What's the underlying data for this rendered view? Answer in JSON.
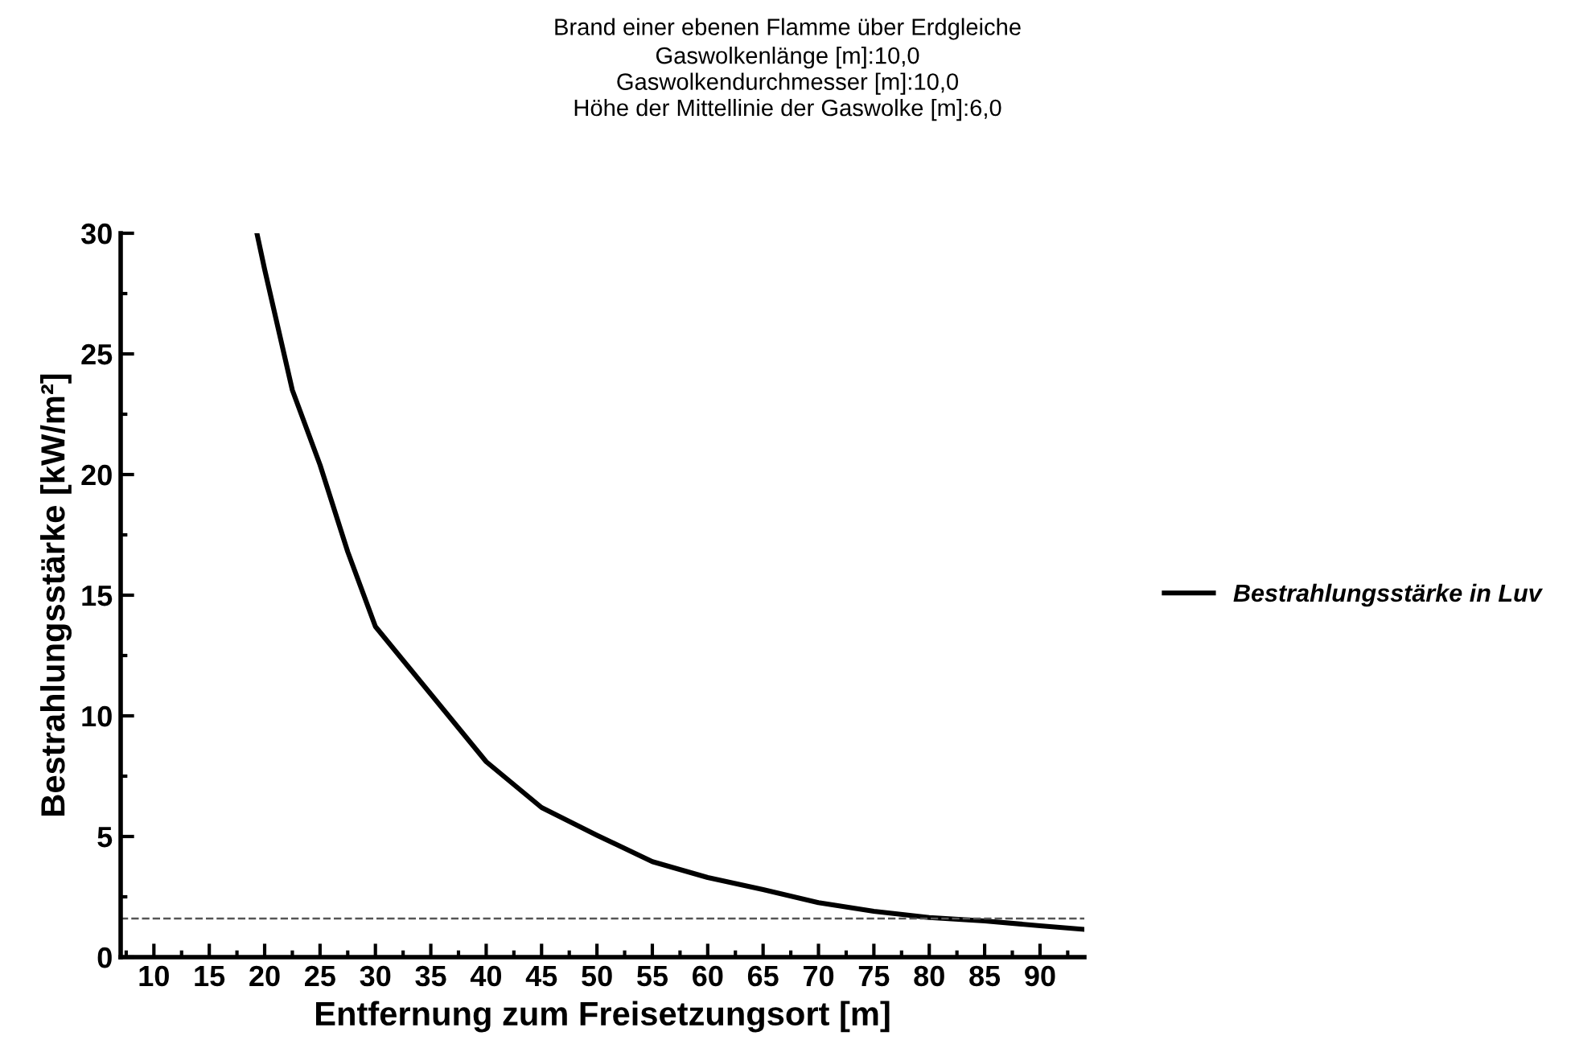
{
  "chart_data": {
    "type": "line",
    "title": "Brand einer ebenen Flamme über Erdgleiche",
    "subtitle": "Gaswolkenlänge [m]:10,0\nGaswolkendurchmesser [m]:10,0\nHöhe der Mittellinie der Gaswolke [m]:6,0",
    "xlabel": "Entfernung zum Freisetzungsort [m]",
    "ylabel": "Bestrahlungsstärke [kW/m²]",
    "xlim": [
      7,
      94
    ],
    "xticks": [
      10,
      15,
      20,
      25,
      30,
      35,
      40,
      45,
      50,
      55,
      60,
      65,
      70,
      75,
      80,
      85,
      90
    ],
    "ylim": [
      0,
      30
    ],
    "yticks": [
      0,
      5,
      10,
      15,
      20,
      25,
      30
    ],
    "series": [
      {
        "name": "Bestrahlungsstärke in Luv",
        "color": "#000000",
        "x": [
          19.3,
          20,
          22.5,
          25,
          27.5,
          30,
          35,
          40,
          45,
          50,
          55,
          60,
          65,
          70,
          75,
          80,
          85,
          90,
          94
        ],
        "values": [
          30,
          28.5,
          23.5,
          20.4,
          16.8,
          13.7,
          10.9,
          8.1,
          6.2,
          5.05,
          3.96,
          3.3,
          2.8,
          2.26,
          1.9,
          1.64,
          1.5,
          1.3,
          1.15
        ]
      }
    ],
    "ref_lines": [
      {
        "axis": "y",
        "value": 1.6,
        "color": "#555555",
        "line_style": "dashed"
      }
    ],
    "legend": "right",
    "grid": false,
    "marker": "none",
    "line_style": "solid"
  }
}
